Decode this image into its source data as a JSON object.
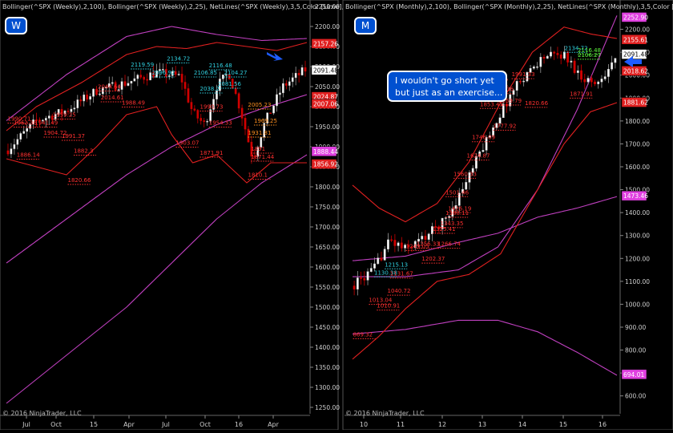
{
  "left_panel": {
    "header": "Bollinger(^SPX (Weekly),2,100), Bollinger(^SPX (Weekly),2,25), NetLines(^SPX (Weekly),3,5,Color [Lime],Color...",
    "timeframe_badge": "W",
    "copyright": "© 2016 NinjaTrader, LLC",
    "arrow_icon": "down-right-arrow-icon"
  },
  "right_panel": {
    "header": "Bollinger(^SPX (Monthly),2,100), Bollinger(^SPX (Monthly),2,25), NetLines(^SPX (Monthly),3,5,Color [Lime],Color...",
    "timeframe_badge": "M",
    "copyright": "© 2016 NinjaTrader, LLC",
    "arrow_icon": "left-arrow-icon",
    "annotation": [
      "I wouldn't go short yet",
      "but just as an exercise..."
    ]
  },
  "colors": {
    "background": "#000000",
    "up_candle": "#ffffff",
    "down_candle": "#d00000",
    "bb_long": "#c040c0",
    "bb_short": "#e02020",
    "badge_blue": "#0050d0",
    "arrow_blue": "#1e5cff",
    "label_red": "#ff3030",
    "label_cyan": "#30d0e0",
    "label_orange": "#ff9020",
    "label_green": "#60ff40"
  },
  "chart_data": [
    {
      "type": "candlestick",
      "title": "",
      "timeframe": "Weekly",
      "x_tick_labels": [
        "Jul",
        "Oct",
        "15",
        "Apr",
        "Jul",
        "Oct",
        "16",
        "Apr"
      ],
      "ylim": [
        1250,
        2250
      ],
      "y_ticks": [
        1250,
        1300,
        1350,
        1400,
        1450,
        1500,
        1550,
        1600,
        1650,
        1700,
        1750,
        1800,
        1850,
        1900,
        1950,
        2000,
        2050,
        2100,
        2150,
        2200,
        2250
      ],
      "grid": false,
      "price_tags": [
        {
          "value": 2157.26,
          "label": "2157.26",
          "color": "#e02020"
        },
        {
          "value": 2091.48,
          "label": "2091.48",
          "color": "#ffffff"
        },
        {
          "value": 2024.87,
          "label": "2024.87",
          "color": "#e02020"
        },
        {
          "value": 2007.06,
          "label": "2007.06",
          "color": "#e02020"
        },
        {
          "value": 1888.44,
          "label": "1888.44",
          "color": "#e040e0"
        },
        {
          "value": 1856.92,
          "label": "1856.92",
          "color": "#e02020"
        }
      ],
      "level_labels": [
        {
          "t": 0.02,
          "value": 1965,
          "label": "1990.71",
          "color": "#ff3030"
        },
        {
          "t": 0.04,
          "value": 1955,
          "label": "1962.36",
          "color": "#ff3030"
        },
        {
          "t": 0.05,
          "value": 1875,
          "label": "1886.14",
          "color": "#ff3030"
        },
        {
          "t": 0.11,
          "value": 1955,
          "label": "1941.49",
          "color": "#ff3030"
        },
        {
          "t": 0.14,
          "value": 1930,
          "label": "1904.72",
          "color": "#ff3030"
        },
        {
          "t": 0.17,
          "value": 1975,
          "label": "1959.25",
          "color": "#ff3030"
        },
        {
          "t": 0.2,
          "value": 1922,
          "label": "1991.37",
          "color": "#ff3030"
        },
        {
          "t": 0.24,
          "value": 1885,
          "label": "1882.3",
          "color": "#ff3030"
        },
        {
          "t": 0.22,
          "value": 1812,
          "label": "1820.66",
          "color": "#ff3030"
        },
        {
          "t": 0.32,
          "value": 2045,
          "label": "2044.64",
          "color": "#ff3030"
        },
        {
          "t": 0.33,
          "value": 2018,
          "label": "2014.61",
          "color": "#ff3030"
        },
        {
          "t": 0.4,
          "value": 2005,
          "label": "1988.49",
          "color": "#ff3030"
        },
        {
          "t": 0.43,
          "value": 2100,
          "label": "2119.59",
          "color": "#30d0e0"
        },
        {
          "t": 0.5,
          "value": 2080,
          "label": "2096.92",
          "color": "#30d0e0"
        },
        {
          "t": 0.55,
          "value": 2115,
          "label": "2134.72",
          "color": "#30d0e0"
        },
        {
          "t": 0.64,
          "value": 2080,
          "label": "2106.85",
          "color": "#30d0e0"
        },
        {
          "t": 0.69,
          "value": 2098,
          "label": "2116.48",
          "color": "#30d0e0"
        },
        {
          "t": 0.74,
          "value": 2080,
          "label": "2104.27",
          "color": "#30d0e0"
        },
        {
          "t": 0.72,
          "value": 2052,
          "label": "2081.56",
          "color": "#30d0e0"
        },
        {
          "t": 0.66,
          "value": 2040,
          "label": "2038.2",
          "color": "#30d0e0"
        },
        {
          "t": 0.66,
          "value": 1995,
          "label": "1990.73",
          "color": "#ff3030"
        },
        {
          "t": 0.69,
          "value": 1955,
          "label": "1954.33",
          "color": "#ff3030"
        },
        {
          "t": 0.58,
          "value": 1905,
          "label": "1903.07",
          "color": "#ff3030"
        },
        {
          "t": 0.66,
          "value": 1880,
          "label": "1871.91",
          "color": "#ff3030"
        },
        {
          "t": 0.82,
          "value": 2000,
          "label": "2005.23",
          "color": "#ff9020"
        },
        {
          "t": 0.84,
          "value": 1960,
          "label": "1969.25",
          "color": "#ff9020"
        },
        {
          "t": 0.82,
          "value": 1930,
          "label": "1931.81",
          "color": "#ff9020"
        },
        {
          "t": 0.83,
          "value": 1890,
          "label": "1891",
          "color": "#ff3030"
        },
        {
          "t": 0.83,
          "value": 1870,
          "label": "1871.44",
          "color": "#ff3030"
        },
        {
          "t": 0.82,
          "value": 1825,
          "label": "1810.1",
          "color": "#ff3030"
        }
      ],
      "annotations": []
    },
    {
      "type": "candlestick",
      "title": "",
      "timeframe": "Monthly",
      "x_tick_labels": [
        "10",
        "11",
        "12",
        "13",
        "14",
        "15",
        "16"
      ],
      "ylim": [
        550,
        2300
      ],
      "y_ticks": [
        600,
        700,
        800,
        900,
        1000,
        1100,
        1200,
        1300,
        1400,
        1500,
        1600,
        1700,
        1800,
        1900,
        2000,
        2100,
        2200
      ],
      "grid": false,
      "price_tags": [
        {
          "value": 2252.9,
          "label": "2252.90",
          "color": "#e040e0"
        },
        {
          "value": 2155.61,
          "label": "2155.61",
          "color": "#e02020"
        },
        {
          "value": 2091.48,
          "label": "2091.48",
          "color": "#ffffff"
        },
        {
          "value": 2018.62,
          "label": "2018.62",
          "color": "#e02020"
        },
        {
          "value": 1881.62,
          "label": "1881.62",
          "color": "#e02020"
        },
        {
          "value": 1473.46,
          "label": "1473.46",
          "color": "#e040e0"
        },
        {
          "value": 694.01,
          "label": "694.01",
          "color": "#e040e0"
        }
      ],
      "level_labels": [
        {
          "t": 0.02,
          "value": 860,
          "label": "869.32",
          "color": "#ff3030"
        },
        {
          "t": 0.08,
          "value": 1010,
          "label": "1013.04",
          "color": "#ff3030"
        },
        {
          "t": 0.11,
          "value": 985,
          "label": "1010.91",
          "color": "#ff3030"
        },
        {
          "t": 0.1,
          "value": 1130,
          "label": "1130.38",
          "color": "#30d0e0"
        },
        {
          "t": 0.14,
          "value": 1165,
          "label": "1215.13",
          "color": "#30d0e0"
        },
        {
          "t": 0.15,
          "value": 1050,
          "label": "1040.72",
          "color": "#ff3030"
        },
        {
          "t": 0.16,
          "value": 1125,
          "label": "1131.67",
          "color": "#ff3030"
        },
        {
          "t": 0.22,
          "value": 1245,
          "label": "1249.05",
          "color": "#ff3030"
        },
        {
          "t": 0.28,
          "value": 1190,
          "label": "1202.37",
          "color": "#ff3030"
        },
        {
          "t": 0.26,
          "value": 1255,
          "label": "1256.33",
          "color": "#ff3030"
        },
        {
          "t": 0.34,
          "value": 1255,
          "label": "1266.74",
          "color": "#ff3030"
        },
        {
          "t": 0.32,
          "value": 1320,
          "label": "1325.41",
          "color": "#ff3030"
        },
        {
          "t": 0.35,
          "value": 1345,
          "label": "1343.35",
          "color": "#ff3030"
        },
        {
          "t": 0.38,
          "value": 1410,
          "label": "1426.19",
          "color": "#ff3030"
        },
        {
          "t": 0.37,
          "value": 1390,
          "label": "1388.11",
          "color": "#ff3030"
        },
        {
          "t": 0.37,
          "value": 1480,
          "label": "1501.46",
          "color": "#ff3030"
        },
        {
          "t": 0.4,
          "value": 1560,
          "label": "1560.33",
          "color": "#ff3030"
        },
        {
          "t": 0.45,
          "value": 1640,
          "label": "1624.87",
          "color": "#ff3030"
        },
        {
          "t": 0.47,
          "value": 1720,
          "label": "1746.09",
          "color": "#ff3030"
        },
        {
          "t": 0.55,
          "value": 1770,
          "label": "1777.92",
          "color": "#ff3030"
        },
        {
          "t": 0.57,
          "value": 1880,
          "label": "1859.79",
          "color": "#ff3030"
        },
        {
          "t": 0.67,
          "value": 1870,
          "label": "1820.66",
          "color": "#ff3030"
        },
        {
          "t": 0.5,
          "value": 1865,
          "label": "1853.43",
          "color": "#ff3030"
        },
        {
          "t": 0.52,
          "value": 1965,
          "label": "1931.87",
          "color": "#ff3030"
        },
        {
          "t": 0.54,
          "value": 1930,
          "label": "1955.36",
          "color": "#ff3030"
        },
        {
          "t": 0.62,
          "value": 1995,
          "label": "1991.33",
          "color": "#ff3030"
        },
        {
          "t": 0.82,
          "value": 2110,
          "label": "2134.72",
          "color": "#30d0e0"
        },
        {
          "t": 0.87,
          "value": 2100,
          "label": "2116.48",
          "color": "#60ff40"
        },
        {
          "t": 0.87,
          "value": 2080,
          "label": "2106.27",
          "color": "#60ff40"
        },
        {
          "t": 0.84,
          "value": 1910,
          "label": "1871.91",
          "color": "#ff3030"
        }
      ],
      "annotations": [
        {
          "text": "I wouldn't go short yet but just as an exercise..."
        }
      ]
    }
  ]
}
